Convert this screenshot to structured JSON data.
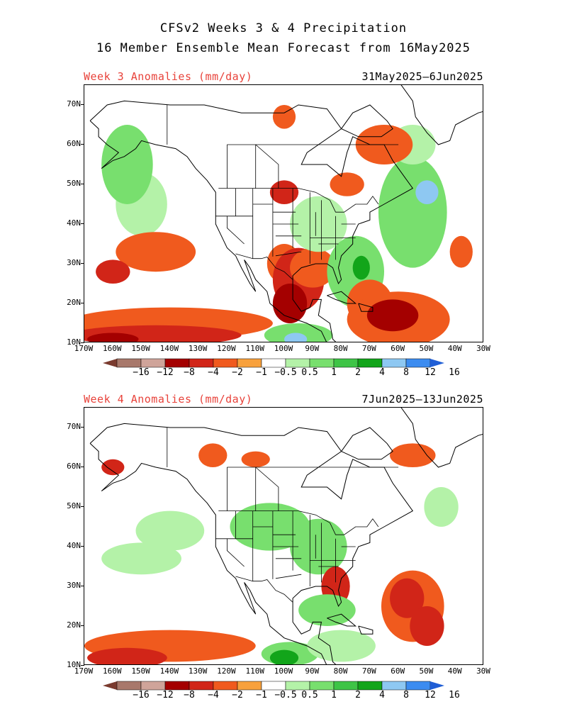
{
  "header": {
    "line1": "CFSv2 Weeks 3 & 4 Precipitation",
    "line2": "16 Member Ensemble Mean Forecast from 16May2025"
  },
  "panels": [
    {
      "title": "Week 3 Anomalies (mm/day)",
      "dates": "31May2025–6Jun2025",
      "blobs": [
        {
          "lon": -150,
          "lat": 45,
          "rx": 9,
          "ry": 8,
          "level": 0.5
        },
        {
          "lon": -155,
          "lat": 55,
          "rx": 9,
          "ry": 10,
          "level": 1.5
        },
        {
          "lon": -145,
          "lat": 33,
          "rx": 14,
          "ry": 5,
          "level": -1.5
        },
        {
          "lon": -160,
          "lat": 28,
          "rx": 6,
          "ry": 3,
          "level": -3
        },
        {
          "lon": -140,
          "lat": 15,
          "rx": 36,
          "ry": 4,
          "level": -1.5
        },
        {
          "lon": -145,
          "lat": 12,
          "rx": 30,
          "ry": 2.5,
          "level": -3
        },
        {
          "lon": -160,
          "lat": 11,
          "rx": 9,
          "ry": 1.6,
          "level": -5
        },
        {
          "lon": -100,
          "lat": 30,
          "rx": 6,
          "ry": 5,
          "level": -1.5
        },
        {
          "lon": -95,
          "lat": 26,
          "rx": 9,
          "ry": 8,
          "level": -3
        },
        {
          "lon": -98,
          "lat": 20,
          "rx": 6,
          "ry": 5,
          "level": -5
        },
        {
          "lon": -90,
          "lat": 29,
          "rx": 8,
          "ry": 5,
          "level": -1.5
        },
        {
          "lon": -88,
          "lat": 40,
          "rx": 10,
          "ry": 7,
          "level": 0.75
        },
        {
          "lon": -75,
          "lat": 28,
          "rx": 10,
          "ry": 9,
          "level": 1.5
        },
        {
          "lon": -73,
          "lat": 29,
          "rx": 3,
          "ry": 3,
          "level": 6
        },
        {
          "lon": -95,
          "lat": 12,
          "rx": 12,
          "ry": 3,
          "level": 1.5
        },
        {
          "lon": -96,
          "lat": 11,
          "rx": 4,
          "ry": 1.6,
          "level": 10
        },
        {
          "lon": -70,
          "lat": 20,
          "rx": 8,
          "ry": 6,
          "level": -1.5
        },
        {
          "lon": -60,
          "lat": 16,
          "rx": 18,
          "ry": 7,
          "level": -1.5
        },
        {
          "lon": -62,
          "lat": 17,
          "rx": 9,
          "ry": 4,
          "level": -5
        },
        {
          "lon": -55,
          "lat": 43,
          "rx": 12,
          "ry": 14,
          "level": 1.5
        },
        {
          "lon": -50,
          "lat": 48,
          "rx": 4,
          "ry": 3,
          "level": 10
        },
        {
          "lon": -55,
          "lat": 60,
          "rx": 8,
          "ry": 5,
          "level": 0.75
        },
        {
          "lon": -65,
          "lat": 60,
          "rx": 10,
          "ry": 5,
          "level": -1.5
        },
        {
          "lon": -78,
          "lat": 50,
          "rx": 6,
          "ry": 3,
          "level": -1.5
        },
        {
          "lon": -100,
          "lat": 48,
          "rx": 5,
          "ry": 3,
          "level": -3
        },
        {
          "lon": -38,
          "lat": 33,
          "rx": 4,
          "ry": 4,
          "level": -1.5
        },
        {
          "lon": -100,
          "lat": 67,
          "rx": 4,
          "ry": 3,
          "level": -1.5
        }
      ]
    },
    {
      "title": "Week 4 Anomalies (mm/day)",
      "dates": "7Jun2025–13Jun2025",
      "blobs": [
        {
          "lon": -140,
          "lat": 44,
          "rx": 12,
          "ry": 5,
          "level": 0.75
        },
        {
          "lon": -150,
          "lat": 37,
          "rx": 14,
          "ry": 4,
          "level": 0.75
        },
        {
          "lon": -160,
          "lat": 60,
          "rx": 4,
          "ry": 2,
          "level": -3
        },
        {
          "lon": -140,
          "lat": 15,
          "rx": 30,
          "ry": 4,
          "level": -1.5
        },
        {
          "lon": -155,
          "lat": 12,
          "rx": 14,
          "ry": 2.5,
          "level": -3
        },
        {
          "lon": -105,
          "lat": 45,
          "rx": 14,
          "ry": 6,
          "level": 1.5
        },
        {
          "lon": -88,
          "lat": 40,
          "rx": 10,
          "ry": 7,
          "level": 1.5
        },
        {
          "lon": -82,
          "lat": 30,
          "rx": 5,
          "ry": 5,
          "level": -3
        },
        {
          "lon": -85,
          "lat": 24,
          "rx": 10,
          "ry": 4,
          "level": 1.5
        },
        {
          "lon": -98,
          "lat": 13,
          "rx": 10,
          "ry": 3,
          "level": 1.5
        },
        {
          "lon": -100,
          "lat": 12,
          "rx": 5,
          "ry": 2,
          "level": 6
        },
        {
          "lon": -55,
          "lat": 25,
          "rx": 11,
          "ry": 9,
          "level": -1.5
        },
        {
          "lon": -57,
          "lat": 27,
          "rx": 6,
          "ry": 5,
          "level": -3
        },
        {
          "lon": -50,
          "lat": 20,
          "rx": 6,
          "ry": 5,
          "level": -3
        },
        {
          "lon": -55,
          "lat": 63,
          "rx": 8,
          "ry": 3,
          "level": -1.5
        },
        {
          "lon": -45,
          "lat": 50,
          "rx": 6,
          "ry": 5,
          "level": 0.75
        },
        {
          "lon": -125,
          "lat": 63,
          "rx": 5,
          "ry": 3,
          "level": -1.5
        },
        {
          "lon": -110,
          "lat": 62,
          "rx": 5,
          "ry": 2,
          "level": -1.5
        },
        {
          "lon": -80,
          "lat": 15,
          "rx": 12,
          "ry": 4,
          "level": 0.75
        }
      ]
    }
  ],
  "legend": {
    "labels": [
      "−16",
      "−12",
      "−8",
      "−4",
      "−2",
      "−1",
      "−0.5",
      "0.5",
      "1",
      "2",
      "4",
      "8",
      "12",
      "16"
    ],
    "colors": [
      "#7a3b2f",
      "#a8786b",
      "#cfa49a",
      "#a40000",
      "#d12518",
      "#f05a1e",
      "#f8a13c",
      "#ffffff",
      "#b4f2a8",
      "#78df6e",
      "#3ec446",
      "#12a51a",
      "#8ec8f2",
      "#3c8cf0",
      "#1f5ed6"
    ]
  },
  "axes": {
    "lat_ticks": [
      "10N",
      "20N",
      "30N",
      "40N",
      "50N",
      "60N",
      "70N"
    ],
    "lon_ticks": [
      "170W",
      "160W",
      "150W",
      "140W",
      "130W",
      "120W",
      "110W",
      "100W",
      "90W",
      "80W",
      "70W",
      "60W",
      "50W",
      "40W",
      "30W"
    ]
  }
}
